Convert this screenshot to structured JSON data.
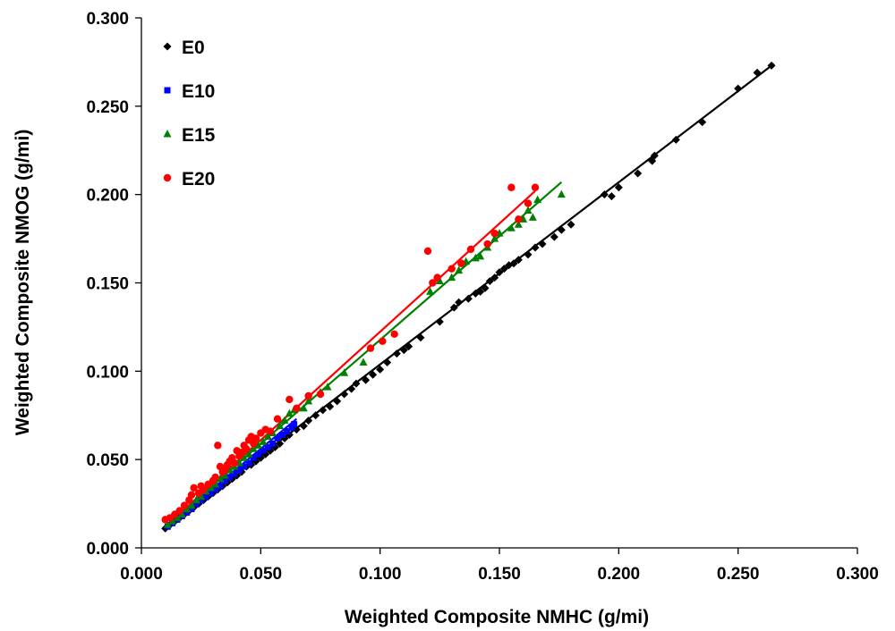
{
  "chart_data": {
    "type": "scatter",
    "title": "",
    "xlabel": "Weighted Composite NMHC (g/mi)",
    "ylabel": "Weighted Composite NMOG (g/mi)",
    "xlim": [
      0,
      0.3
    ],
    "ylim": [
      0,
      0.3
    ],
    "x_ticks": [
      "0.000",
      "0.050",
      "0.100",
      "0.150",
      "0.200",
      "0.250",
      "0.300"
    ],
    "y_ticks": [
      "0.000",
      "0.050",
      "0.100",
      "0.150",
      "0.200",
      "0.250",
      "0.300"
    ],
    "grid": false,
    "legend_position": "top-left",
    "series": [
      {
        "name": "E0",
        "marker": "diamond",
        "color": "#000000",
        "trendline": {
          "x": [
            0.01,
            0.265
          ],
          "y": [
            0.011,
            0.274
          ]
        },
        "points": [
          [
            0.01,
            0.011
          ],
          [
            0.012,
            0.013
          ],
          [
            0.014,
            0.015
          ],
          [
            0.016,
            0.017
          ],
          [
            0.018,
            0.019
          ],
          [
            0.02,
            0.021
          ],
          [
            0.022,
            0.023
          ],
          [
            0.024,
            0.025
          ],
          [
            0.026,
            0.027
          ],
          [
            0.028,
            0.029
          ],
          [
            0.03,
            0.031
          ],
          [
            0.032,
            0.033
          ],
          [
            0.034,
            0.035
          ],
          [
            0.036,
            0.037
          ],
          [
            0.038,
            0.039
          ],
          [
            0.04,
            0.041
          ],
          [
            0.042,
            0.043
          ],
          [
            0.044,
            0.046
          ],
          [
            0.046,
            0.047
          ],
          [
            0.048,
            0.049
          ],
          [
            0.05,
            0.051
          ],
          [
            0.052,
            0.053
          ],
          [
            0.054,
            0.055
          ],
          [
            0.056,
            0.057
          ],
          [
            0.058,
            0.059
          ],
          [
            0.06,
            0.062
          ],
          [
            0.062,
            0.064
          ],
          [
            0.065,
            0.067
          ],
          [
            0.068,
            0.069
          ],
          [
            0.07,
            0.072
          ],
          [
            0.073,
            0.075
          ],
          [
            0.076,
            0.078
          ],
          [
            0.079,
            0.08
          ],
          [
            0.082,
            0.083
          ],
          [
            0.085,
            0.087
          ],
          [
            0.088,
            0.09
          ],
          [
            0.09,
            0.093
          ],
          [
            0.094,
            0.095
          ],
          [
            0.097,
            0.098
          ],
          [
            0.1,
            0.101
          ],
          [
            0.103,
            0.105
          ],
          [
            0.107,
            0.11
          ],
          [
            0.11,
            0.112
          ],
          [
            0.112,
            0.114
          ],
          [
            0.117,
            0.119
          ],
          [
            0.125,
            0.128
          ],
          [
            0.131,
            0.136
          ],
          [
            0.133,
            0.139
          ],
          [
            0.137,
            0.141
          ],
          [
            0.14,
            0.144
          ],
          [
            0.142,
            0.145
          ],
          [
            0.144,
            0.147
          ],
          [
            0.146,
            0.151
          ],
          [
            0.148,
            0.153
          ],
          [
            0.15,
            0.156
          ],
          [
            0.152,
            0.158
          ],
          [
            0.154,
            0.16
          ],
          [
            0.156,
            0.161
          ],
          [
            0.158,
            0.163
          ],
          [
            0.162,
            0.166
          ],
          [
            0.165,
            0.17
          ],
          [
            0.168,
            0.172
          ],
          [
            0.173,
            0.176
          ],
          [
            0.176,
            0.18
          ],
          [
            0.18,
            0.183
          ],
          [
            0.194,
            0.2
          ],
          [
            0.197,
            0.199
          ],
          [
            0.2,
            0.204
          ],
          [
            0.208,
            0.212
          ],
          [
            0.214,
            0.219
          ],
          [
            0.215,
            0.222
          ],
          [
            0.224,
            0.231
          ],
          [
            0.235,
            0.241
          ],
          [
            0.25,
            0.26
          ],
          [
            0.258,
            0.269
          ],
          [
            0.264,
            0.273
          ]
        ]
      },
      {
        "name": "E10",
        "marker": "square",
        "color": "#0000FF",
        "trendline": {
          "x": [
            0.01,
            0.065
          ],
          "y": [
            0.011,
            0.073
          ]
        },
        "points": [
          [
            0.011,
            0.012
          ],
          [
            0.013,
            0.014
          ],
          [
            0.015,
            0.016
          ],
          [
            0.017,
            0.018
          ],
          [
            0.019,
            0.02
          ],
          [
            0.021,
            0.022
          ],
          [
            0.023,
            0.025
          ],
          [
            0.025,
            0.027
          ],
          [
            0.027,
            0.029
          ],
          [
            0.029,
            0.031
          ],
          [
            0.031,
            0.033
          ],
          [
            0.033,
            0.035
          ],
          [
            0.035,
            0.038
          ],
          [
            0.037,
            0.04
          ],
          [
            0.039,
            0.042
          ],
          [
            0.041,
            0.044
          ],
          [
            0.043,
            0.046
          ],
          [
            0.045,
            0.048
          ],
          [
            0.047,
            0.051
          ],
          [
            0.049,
            0.053
          ],
          [
            0.051,
            0.055
          ],
          [
            0.053,
            0.057
          ],
          [
            0.055,
            0.059
          ],
          [
            0.057,
            0.062
          ],
          [
            0.059,
            0.064
          ],
          [
            0.061,
            0.066
          ],
          [
            0.063,
            0.068
          ],
          [
            0.064,
            0.07
          ]
        ]
      },
      {
        "name": "E15",
        "marker": "triangle",
        "color": "#008000",
        "trendline": {
          "x": [
            0.01,
            0.176
          ],
          "y": [
            0.012,
            0.207
          ]
        },
        "points": [
          [
            0.011,
            0.013
          ],
          [
            0.013,
            0.015
          ],
          [
            0.015,
            0.017
          ],
          [
            0.017,
            0.019
          ],
          [
            0.019,
            0.022
          ],
          [
            0.021,
            0.024
          ],
          [
            0.023,
            0.027
          ],
          [
            0.025,
            0.029
          ],
          [
            0.027,
            0.032
          ],
          [
            0.029,
            0.034
          ],
          [
            0.031,
            0.036
          ],
          [
            0.033,
            0.039
          ],
          [
            0.035,
            0.041
          ],
          [
            0.037,
            0.044
          ],
          [
            0.039,
            0.046
          ],
          [
            0.041,
            0.048
          ],
          [
            0.043,
            0.051
          ],
          [
            0.045,
            0.053
          ],
          [
            0.047,
            0.056
          ],
          [
            0.049,
            0.058
          ],
          [
            0.051,
            0.06
          ],
          [
            0.053,
            0.063
          ],
          [
            0.055,
            0.065
          ],
          [
            0.058,
            0.069
          ],
          [
            0.06,
            0.072
          ],
          [
            0.062,
            0.076
          ],
          [
            0.064,
            0.078
          ],
          [
            0.068,
            0.079
          ],
          [
            0.07,
            0.083
          ],
          [
            0.075,
            0.088
          ],
          [
            0.078,
            0.091
          ],
          [
            0.085,
            0.099
          ],
          [
            0.093,
            0.105
          ],
          [
            0.121,
            0.145
          ],
          [
            0.125,
            0.151
          ],
          [
            0.13,
            0.153
          ],
          [
            0.133,
            0.157
          ],
          [
            0.136,
            0.162
          ],
          [
            0.14,
            0.164
          ],
          [
            0.142,
            0.165
          ],
          [
            0.145,
            0.17
          ],
          [
            0.148,
            0.175
          ],
          [
            0.15,
            0.178
          ],
          [
            0.155,
            0.181
          ],
          [
            0.158,
            0.183
          ],
          [
            0.16,
            0.186
          ],
          [
            0.162,
            0.191
          ],
          [
            0.164,
            0.187
          ],
          [
            0.166,
            0.197
          ],
          [
            0.176,
            0.2
          ]
        ]
      },
      {
        "name": "E20",
        "marker": "circle",
        "color": "#FF0000",
        "trendline": {
          "x": [
            0.01,
            0.165
          ],
          "y": [
            0.012,
            0.202
          ]
        },
        "points": [
          [
            0.01,
            0.016
          ],
          [
            0.012,
            0.017
          ],
          [
            0.014,
            0.019
          ],
          [
            0.016,
            0.021
          ],
          [
            0.018,
            0.024
          ],
          [
            0.02,
            0.027
          ],
          [
            0.021,
            0.03
          ],
          [
            0.022,
            0.034
          ],
          [
            0.024,
            0.031
          ],
          [
            0.025,
            0.035
          ],
          [
            0.026,
            0.033
          ],
          [
            0.028,
            0.036
          ],
          [
            0.03,
            0.038
          ],
          [
            0.031,
            0.04
          ],
          [
            0.032,
            0.058
          ],
          [
            0.033,
            0.046
          ],
          [
            0.034,
            0.043
          ],
          [
            0.035,
            0.044
          ],
          [
            0.036,
            0.047
          ],
          [
            0.037,
            0.049
          ],
          [
            0.038,
            0.051
          ],
          [
            0.039,
            0.048
          ],
          [
            0.04,
            0.055
          ],
          [
            0.041,
            0.052
          ],
          [
            0.042,
            0.054
          ],
          [
            0.043,
            0.058
          ],
          [
            0.044,
            0.056
          ],
          [
            0.045,
            0.061
          ],
          [
            0.046,
            0.063
          ],
          [
            0.047,
            0.059
          ],
          [
            0.048,
            0.062
          ],
          [
            0.05,
            0.065
          ],
          [
            0.052,
            0.067
          ],
          [
            0.054,
            0.066
          ],
          [
            0.057,
            0.073
          ],
          [
            0.062,
            0.084
          ],
          [
            0.065,
            0.079
          ],
          [
            0.07,
            0.086
          ],
          [
            0.075,
            0.087
          ],
          [
            0.096,
            0.113
          ],
          [
            0.101,
            0.117
          ],
          [
            0.106,
            0.121
          ],
          [
            0.12,
            0.168
          ],
          [
            0.122,
            0.15
          ],
          [
            0.124,
            0.153
          ],
          [
            0.13,
            0.158
          ],
          [
            0.134,
            0.161
          ],
          [
            0.138,
            0.169
          ],
          [
            0.145,
            0.172
          ],
          [
            0.148,
            0.178
          ],
          [
            0.155,
            0.204
          ],
          [
            0.158,
            0.186
          ],
          [
            0.162,
            0.195
          ],
          [
            0.165,
            0.204
          ]
        ]
      }
    ]
  }
}
